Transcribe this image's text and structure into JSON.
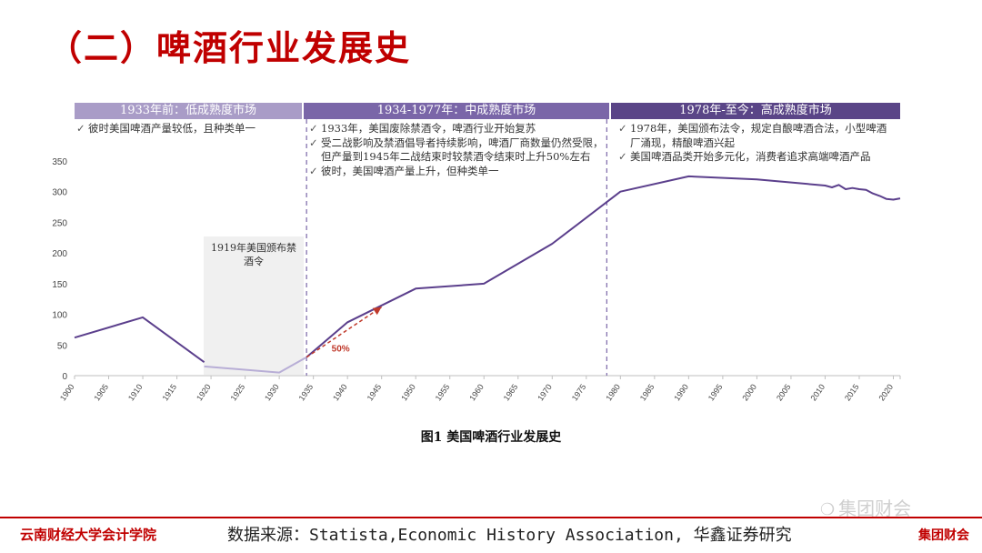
{
  "page": {
    "title": "（二）啤酒行业发展史",
    "caption": "图1 美国啤酒行业发展史",
    "footer_left": "云南财经大学会计学院",
    "footer_source": "数据来源：Statista,Economic History Association, 华鑫证券研究",
    "footer_right": "集团财会",
    "watermark": "集团财会"
  },
  "colors": {
    "title": "#c00000",
    "line": "#5b3f8c",
    "line_light": "#b8aed6",
    "phase1": "#a99cc7",
    "phase2": "#7a66a8",
    "phase3": "#5a4587",
    "arrow": "#c0392b"
  },
  "phases": [
    {
      "label": "1933年前：低成熟度市场",
      "notes": [
        "彼时美国啤酒产量较低，且种类单一"
      ]
    },
    {
      "label": "1934-1977年：中成熟度市场",
      "notes": [
        "1933年，美国废除禁酒令，啤酒行业开始复苏",
        "受二战影响及禁酒倡导者持续影响，啤酒厂商数量仍然受限，但产量到1945年二战结束时较禁酒令结束时上升50%左右",
        "彼时，美国啤酒产量上升，但种类单一"
      ]
    },
    {
      "label": "1978年-至今：高成熟度市场",
      "notes": [
        "1978年，美国颁布法令，规定自酿啤酒合法，小型啤酒厂涌现，精酿啤酒兴起",
        "美国啤酒品类开始多元化，消费者追求高端啤酒产品"
      ]
    }
  ],
  "prohibition_label": "1919年美国颁布禁酒令",
  "chart_data": {
    "type": "line",
    "xlim": [
      1900,
      2021
    ],
    "ylim": [
      0,
      350
    ],
    "yticks": [
      0,
      50,
      100,
      150,
      200,
      250,
      300,
      350
    ],
    "xticks": [
      1900,
      1905,
      1910,
      1915,
      1920,
      1925,
      1930,
      1935,
      1940,
      1945,
      1950,
      1955,
      1960,
      1965,
      1970,
      1975,
      1980,
      1985,
      1990,
      1995,
      2000,
      2005,
      2010,
      2015,
      2020
    ],
    "phase_dividers": [
      1934,
      1978
    ],
    "series": [
      {
        "points": [
          [
            1900,
            62
          ],
          [
            1910,
            95
          ],
          [
            1919,
            22
          ]
        ]
      },
      {
        "points": [
          [
            1919,
            15
          ],
          [
            1930,
            5
          ],
          [
            1934,
            30
          ]
        ]
      },
      {
        "points": [
          [
            1934,
            30
          ],
          [
            1940,
            87
          ],
          [
            1950,
            142
          ],
          [
            1960,
            150
          ],
          [
            1970,
            215
          ],
          [
            1980,
            300
          ],
          [
            1990,
            325
          ],
          [
            2000,
            320
          ],
          [
            2010,
            310
          ],
          [
            2011,
            307
          ],
          [
            2012,
            311
          ],
          [
            2013,
            304
          ],
          [
            2014,
            306
          ],
          [
            2015,
            304
          ],
          [
            2016,
            303
          ],
          [
            2017,
            297
          ],
          [
            2018,
            293
          ],
          [
            2019,
            288
          ],
          [
            2020,
            287
          ],
          [
            2021,
            289
          ]
        ]
      }
    ],
    "annotation": {
      "text": "50%",
      "from": [
        1934,
        30
      ],
      "to": [
        1945,
        112
      ]
    }
  }
}
